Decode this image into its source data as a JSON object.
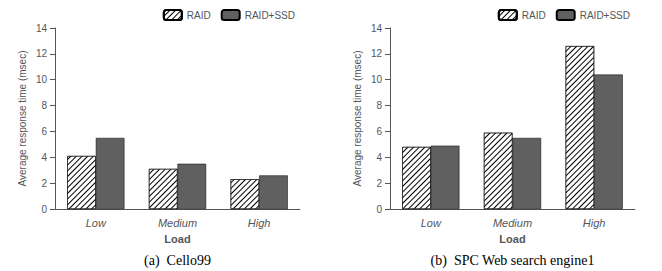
{
  "chart_data": [
    {
      "type": "bar",
      "title": "(a)  Cello99",
      "categories": [
        "Low",
        "Medium",
        "High"
      ],
      "series": [
        {
          "name": "RAID",
          "color": "#ffffff",
          "values": [
            4.1,
            3.1,
            2.3
          ]
        },
        {
          "name": "RAID+SSD",
          "color": "#606060",
          "values": [
            5.5,
            3.5,
            2.6
          ]
        }
      ],
      "xlabel": "Load",
      "ylabel": "Average response time (msec)",
      "ylim": [
        0,
        14
      ],
      "yticks": [
        0,
        2,
        4,
        6,
        8,
        10,
        12,
        14
      ],
      "grid": false,
      "legend": "upper right"
    },
    {
      "type": "bar",
      "title": "(b)  SPC Web search engine1",
      "categories": [
        "Low",
        "Medium",
        "High"
      ],
      "series": [
        {
          "name": "RAID",
          "color": "#ffffff",
          "values": [
            4.8,
            5.9,
            12.6
          ]
        },
        {
          "name": "RAID+SSD",
          "color": "#606060",
          "values": [
            4.9,
            5.5,
            10.4
          ]
        }
      ],
      "xlabel": "Load",
      "ylabel": "Average response time (msec)",
      "ylim": [
        0,
        14
      ],
      "yticks": [
        0,
        2,
        4,
        6,
        8,
        10,
        12,
        14
      ],
      "grid": false,
      "legend": "upper right"
    }
  ]
}
